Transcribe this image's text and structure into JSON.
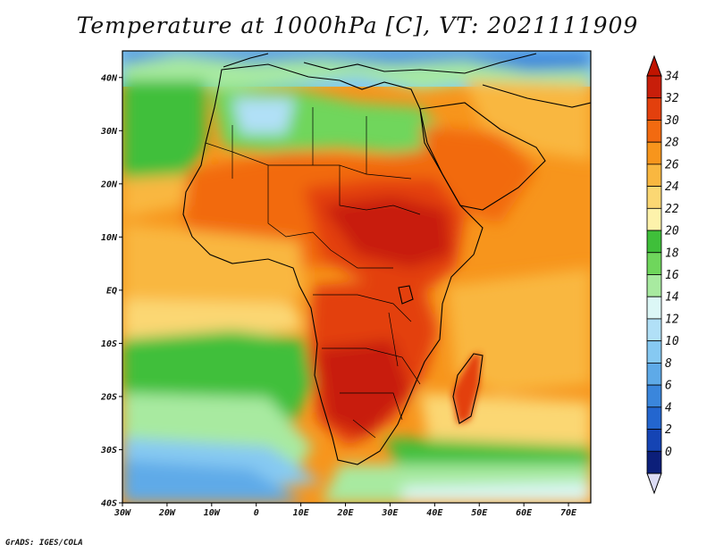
{
  "title": "Temperature at 1000hPa [C], VT: 2021111909",
  "credit": "GrADS: IGES/COLA",
  "map": {
    "lat_labels": [
      "40N",
      "30N",
      "20N",
      "10N",
      "EQ",
      "10S",
      "20S",
      "30S",
      "40S"
    ],
    "lon_labels": [
      "30W",
      "20W",
      "10W",
      "0",
      "10E",
      "20E",
      "30E",
      "40E",
      "50E",
      "60E",
      "70E"
    ]
  },
  "colorbar": {
    "labels": [
      "34",
      "32",
      "30",
      "28",
      "26",
      "24",
      "22",
      "20",
      "18",
      "16",
      "14",
      "12",
      "10",
      "8",
      "6",
      "4",
      "2",
      "0"
    ],
    "colors": [
      "#c81e0a",
      "#e3400d",
      "#f26a10",
      "#f7951c",
      "#f9b740",
      "#fbd773",
      "#fdf2ab",
      "#3fbf3a",
      "#6fd65c",
      "#a8eaa0",
      "#dcf7f6",
      "#b1e0f7",
      "#86c9f2",
      "#5eaae8",
      "#3a86dc",
      "#2366cf",
      "#1544b4",
      "#0c1f7a"
    ],
    "top_arrow_color": "#c01400",
    "bottom_arrow_color": "#dcdcf5"
  }
}
